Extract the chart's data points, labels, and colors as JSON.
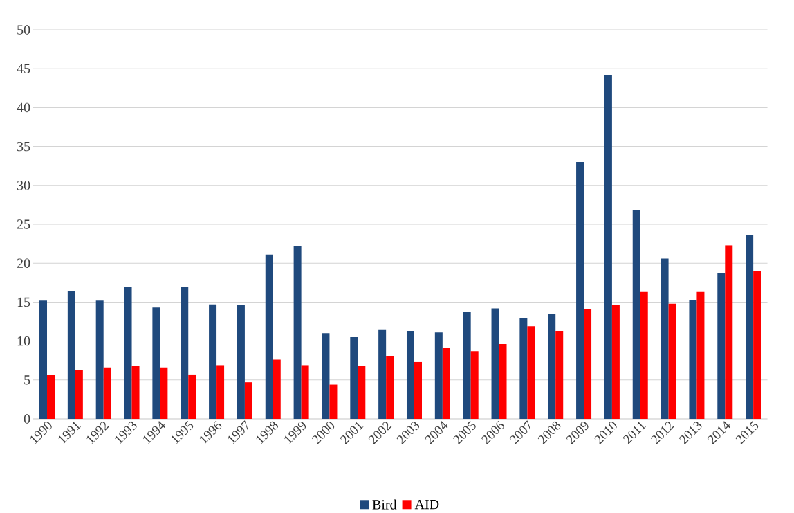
{
  "chart_data": {
    "type": "bar",
    "categories": [
      "1990",
      "1991",
      "1992",
      "1993",
      "1994",
      "1995",
      "1996",
      "1997",
      "1998",
      "1999",
      "2000",
      "2001",
      "2002",
      "2003",
      "2004",
      "2005",
      "2006",
      "2007",
      "2008",
      "2009",
      "2010",
      "2011",
      "2012",
      "2013",
      "2014",
      "2015"
    ],
    "series": [
      {
        "name": "Bird",
        "color": "#1f497d",
        "values": [
          15.2,
          16.4,
          15.2,
          17.0,
          14.3,
          16.9,
          14.7,
          14.6,
          21.1,
          22.2,
          11.0,
          10.5,
          11.5,
          11.3,
          11.1,
          13.7,
          14.2,
          12.9,
          13.5,
          33.0,
          44.2,
          26.8,
          20.6,
          15.3,
          18.7,
          23.6
        ]
      },
      {
        "name": "AID",
        "color": "#ff0000",
        "values": [
          5.6,
          6.3,
          6.6,
          6.8,
          6.6,
          5.7,
          6.9,
          4.7,
          7.6,
          6.9,
          4.4,
          6.8,
          8.1,
          7.3,
          9.1,
          8.7,
          9.6,
          11.9,
          11.3,
          14.1,
          14.6,
          16.3,
          14.8,
          16.3,
          22.3,
          19.0
        ]
      }
    ],
    "ylim": [
      0,
      50
    ],
    "yticks": [
      0,
      5,
      10,
      15,
      20,
      25,
      30,
      35,
      40,
      45,
      50
    ],
    "grid": "y",
    "legend": "bottom"
  }
}
